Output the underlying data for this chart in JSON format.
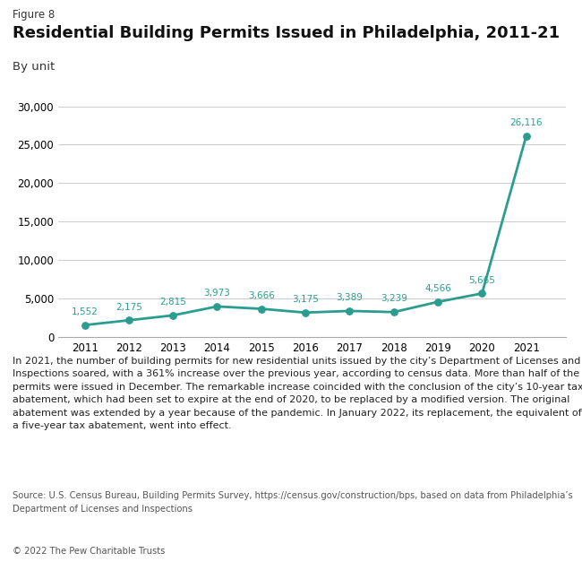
{
  "figure_label": "Figure 8",
  "title": "Residential Building Permits Issued in Philadelphia, 2011-21",
  "subtitle": "By unit",
  "years": [
    2011,
    2012,
    2013,
    2014,
    2015,
    2016,
    2017,
    2018,
    2019,
    2020,
    2021
  ],
  "values": [
    1552,
    2175,
    2815,
    3973,
    3666,
    3175,
    3389,
    3239,
    4566,
    5665,
    26116
  ],
  "labels": [
    "1,552",
    "2,175",
    "2,815",
    "3,973",
    "3,666",
    "3,175",
    "3,389",
    "3,239",
    "4,566",
    "5,665",
    "26,116"
  ],
  "line_color": "#2a9d8f",
  "marker_color": "#2a9d8f",
  "ylim": [
    0,
    31000
  ],
  "yticks": [
    0,
    5000,
    10000,
    15000,
    20000,
    25000,
    30000
  ],
  "ytick_labels": [
    "0",
    "5,000",
    "10,000",
    "15,000",
    "20,000",
    "25,000",
    "30,000"
  ],
  "grid_color": "#cccccc",
  "background_color": "#ffffff",
  "annotation_text": "In 2021, the number of building permits for new residential units issued by the city’s Department of Licenses and Inspections soared, with a 361% increase over the previous year, according to census data. More than half of the permits were issued in December. The remarkable increase coincided with the conclusion of the city’s 10-year tax abatement, which had been set to expire at the end of 2020, to be replaced by a modified version. The original abatement was extended by a year because of the pandemic. In January 2022, its replacement, the equivalent of a five-year tax abatement, went into effect.",
  "source_line1": "Source: U.S. Census Bureau, Building Permits Survey, https://census.gov/construction/bps, based on data from Philadelphia’s",
  "source_line2": "Department of Licenses and Inspections",
  "copyright_text": "© 2022 The Pew Charitable Trusts"
}
